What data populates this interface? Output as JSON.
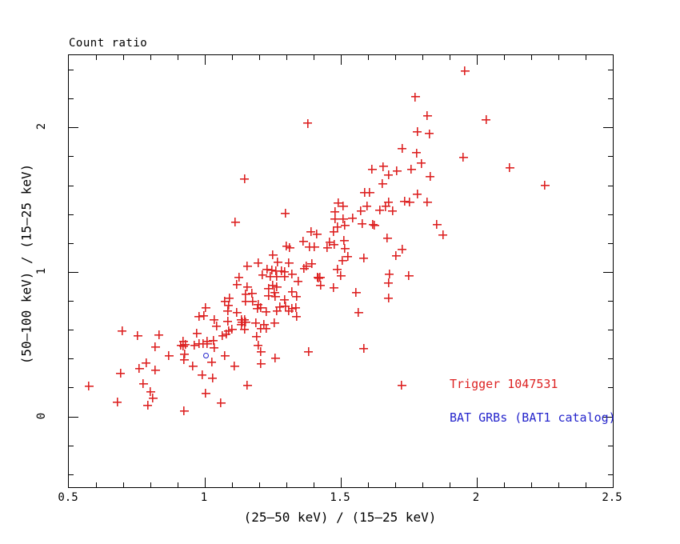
{
  "title": "Count ratio",
  "axes": {
    "x_label": "(25–50 keV) / (15–25 keV)",
    "y_label": "(50–100 keV) / (15–25 keV)"
  },
  "legend": {
    "trigger_label": "Trigger 1047531",
    "catalog_label": "BAT GRBs (BAT1 catalog)"
  },
  "colors": {
    "trigger_red": "#dd2222",
    "catalog_blue": "#2525cc",
    "axis_black": "#000000",
    "background": "#ffffff"
  },
  "chart_data": {
    "type": "scatter",
    "title": "Count ratio",
    "xlabel": "(25–50 keV) / (15–25 keV)",
    "ylabel": "(50–100 keV) / (15–25 keV)",
    "xlim": [
      0.5,
      2.5
    ],
    "ylim": [
      -0.49,
      2.5
    ],
    "x_major_ticks": [
      0.5,
      1.0,
      1.5,
      2.0,
      2.5
    ],
    "x_tick_labels": [
      "0.5",
      "1",
      "1.5",
      "2",
      "2.5"
    ],
    "x_minor_step": 0.1,
    "y_major_ticks": [
      0,
      1,
      2
    ],
    "y_tick_labels": [
      "0",
      "1",
      "2"
    ],
    "y_minor_step": 0.2,
    "grid": false,
    "legend_position": "inside lower right",
    "series": [
      {
        "name": "Trigger 1047531",
        "marker": "plus",
        "color": "#dd2222",
        "points": [
          [
            1.147,
            1.645
          ],
          [
            1.379,
            2.028
          ],
          [
            1.774,
            2.211
          ],
          [
            1.818,
            2.083
          ],
          [
            1.782,
            1.972
          ],
          [
            1.826,
            1.956
          ],
          [
            1.726,
            1.856
          ],
          [
            1.779,
            1.823
          ],
          [
            1.797,
            1.751
          ],
          [
            1.615,
            1.712
          ],
          [
            1.656,
            1.729
          ],
          [
            1.676,
            1.673
          ],
          [
            1.706,
            1.701
          ],
          [
            1.759,
            1.712
          ],
          [
            1.829,
            1.662
          ],
          [
            1.653,
            1.612
          ],
          [
            1.588,
            1.551
          ],
          [
            1.606,
            1.551
          ],
          [
            1.782,
            1.54
          ],
          [
            1.956,
            2.393
          ],
          [
            2.035,
            2.055
          ],
          [
            1.95,
            1.795
          ],
          [
            2.121,
            1.723
          ],
          [
            2.25,
            1.601
          ],
          [
            1.112,
            1.346
          ],
          [
            1.156,
            1.041
          ],
          [
            1.126,
            0.964
          ],
          [
            1.118,
            0.914
          ],
          [
            1.156,
            0.898
          ],
          [
            1.15,
            0.848
          ],
          [
            1.074,
            0.798
          ],
          [
            1.091,
            0.82
          ],
          [
            1.15,
            0.798
          ],
          [
            1.088,
            0.77
          ],
          [
            1.003,
            0.753
          ],
          [
            1.085,
            0.731
          ],
          [
            1.118,
            0.72
          ],
          [
            0.979,
            0.693
          ],
          [
            0.997,
            0.698
          ],
          [
            1.035,
            0.67
          ],
          [
            1.044,
            0.626
          ],
          [
            1.135,
            0.67
          ],
          [
            1.147,
            0.67
          ],
          [
            1.138,
            0.654
          ],
          [
            1.15,
            0.654
          ],
          [
            1.135,
            0.637
          ],
          [
            1.085,
            0.659
          ],
          [
            1.1,
            0.604
          ],
          [
            1.088,
            0.593
          ],
          [
            1.147,
            0.604
          ],
          [
            0.697,
            0.593
          ],
          [
            0.753,
            0.56
          ],
          [
            0.832,
            0.565
          ],
          [
            0.971,
            0.576
          ],
          [
            1.065,
            0.56
          ],
          [
            1.079,
            0.571
          ],
          [
            0.921,
            0.521
          ],
          [
            1.009,
            0.521
          ],
          [
            1.032,
            0.526
          ],
          [
            1.491,
            1.479
          ],
          [
            1.509,
            1.457
          ],
          [
            1.479,
            1.418
          ],
          [
            1.574,
            1.424
          ],
          [
            1.597,
            1.457
          ],
          [
            1.644,
            1.429
          ],
          [
            1.665,
            1.452
          ],
          [
            1.676,
            1.485
          ],
          [
            1.691,
            1.424
          ],
          [
            1.735,
            1.49
          ],
          [
            1.753,
            1.485
          ],
          [
            1.818,
            1.485
          ],
          [
            1.297,
            1.407
          ],
          [
            1.479,
            1.368
          ],
          [
            1.509,
            1.368
          ],
          [
            1.544,
            1.374
          ],
          [
            1.579,
            1.335
          ],
          [
            1.618,
            1.33
          ],
          [
            1.624,
            1.324
          ],
          [
            1.488,
            1.313
          ],
          [
            1.515,
            1.324
          ],
          [
            1.474,
            1.28
          ],
          [
            1.391,
            1.28
          ],
          [
            1.412,
            1.263
          ],
          [
            1.671,
            1.235
          ],
          [
            1.362,
            1.213
          ],
          [
            1.459,
            1.208
          ],
          [
            1.476,
            1.191
          ],
          [
            1.45,
            1.169
          ],
          [
            1.3,
            1.18
          ],
          [
            1.312,
            1.169
          ],
          [
            1.385,
            1.174
          ],
          [
            1.403,
            1.174
          ],
          [
            1.512,
            1.219
          ],
          [
            1.515,
            1.163
          ],
          [
            1.726,
            1.158
          ],
          [
            1.703,
            1.114
          ],
          [
            1.526,
            1.108
          ],
          [
            1.506,
            1.08
          ],
          [
            1.585,
            1.097
          ],
          [
            1.25,
            1.119
          ],
          [
            1.197,
            1.064
          ],
          [
            1.268,
            1.069
          ],
          [
            1.309,
            1.064
          ],
          [
            1.374,
            1.041
          ],
          [
            1.365,
            1.025
          ],
          [
            1.394,
            1.058
          ],
          [
            1.229,
            1.019
          ],
          [
            1.247,
            1.014
          ],
          [
            1.262,
            1.008
          ],
          [
            1.282,
            1.008
          ],
          [
            1.294,
            1.003
          ],
          [
            1.212,
            0.981
          ],
          [
            1.241,
            0.97
          ],
          [
            1.265,
            0.97
          ],
          [
            1.294,
            0.97
          ],
          [
            1.321,
            0.986
          ],
          [
            1.488,
            1.019
          ],
          [
            1.5,
            0.975
          ],
          [
            1.415,
            0.964
          ],
          [
            1.424,
            0.964
          ],
          [
            1.679,
            0.986
          ],
          [
            1.75,
            0.975
          ],
          [
            1.344,
            0.936
          ],
          [
            1.418,
            0.958
          ],
          [
            1.676,
            0.925
          ],
          [
            1.25,
            0.908
          ],
          [
            1.265,
            0.898
          ],
          [
            1.235,
            0.886
          ],
          [
            1.426,
            0.908
          ],
          [
            1.474,
            0.892
          ],
          [
            1.256,
            0.859
          ],
          [
            1.321,
            0.864
          ],
          [
            1.556,
            0.859
          ],
          [
            1.174,
            0.853
          ],
          [
            1.235,
            0.837
          ],
          [
            1.259,
            0.831
          ],
          [
            1.338,
            0.831
          ],
          [
            1.676,
            0.82
          ],
          [
            1.294,
            0.809
          ],
          [
            1.176,
            0.798
          ],
          [
            1.197,
            0.776
          ],
          [
            1.206,
            0.753
          ],
          [
            1.194,
            0.748
          ],
          [
            1.276,
            0.759
          ],
          [
            1.297,
            0.765
          ],
          [
            1.321,
            0.748
          ],
          [
            1.335,
            0.753
          ],
          [
            1.309,
            0.731
          ],
          [
            1.226,
            0.726
          ],
          [
            1.265,
            0.731
          ],
          [
            1.565,
            0.72
          ],
          [
            1.338,
            0.693
          ],
          [
            1.188,
            0.648
          ],
          [
            1.218,
            0.637
          ],
          [
            1.256,
            0.648
          ],
          [
            1.206,
            0.609
          ],
          [
            1.226,
            0.609
          ],
          [
            1.191,
            0.554
          ],
          [
            1.853,
            1.33
          ],
          [
            1.876,
            1.258
          ],
          [
            0.818,
            0.482
          ],
          [
            0.912,
            0.493
          ],
          [
            0.921,
            0.488
          ],
          [
            0.929,
            0.499
          ],
          [
            0.962,
            0.493
          ],
          [
            0.979,
            0.504
          ],
          [
            0.994,
            0.504
          ],
          [
            1.009,
            0.504
          ],
          [
            1.035,
            0.476
          ],
          [
            0.926,
            0.432
          ],
          [
            0.868,
            0.421
          ],
          [
            0.924,
            0.393
          ],
          [
            0.956,
            0.349
          ],
          [
            1.074,
            0.421
          ],
          [
            1.026,
            0.377
          ],
          [
            0.785,
            0.371
          ],
          [
            0.759,
            0.332
          ],
          [
            0.818,
            0.321
          ],
          [
            0.691,
            0.299
          ],
          [
            0.774,
            0.227
          ],
          [
            0.574,
            0.211
          ],
          [
            0.991,
            0.288
          ],
          [
            1.029,
            0.266
          ],
          [
            1.156,
            0.216
          ],
          [
            1.109,
            0.349
          ],
          [
            0.8,
            0.172
          ],
          [
            0.809,
            0.127
          ],
          [
            0.679,
            0.1
          ],
          [
            0.791,
            0.078
          ],
          [
            1.003,
            0.161
          ],
          [
            1.059,
            0.094
          ],
          [
            0.924,
            0.039
          ],
          [
            1.197,
            0.493
          ],
          [
            1.206,
            0.449
          ],
          [
            1.259,
            0.404
          ],
          [
            1.206,
            0.366
          ],
          [
            1.382,
            0.449
          ],
          [
            1.585,
            0.471
          ],
          [
            1.724,
            0.216
          ]
        ]
      },
      {
        "name": "BAT GRBs (BAT1 catalog)",
        "marker": "open-circle",
        "color": "#2525cc",
        "points": [
          [
            1.003,
            0.421
          ]
        ]
      }
    ]
  }
}
